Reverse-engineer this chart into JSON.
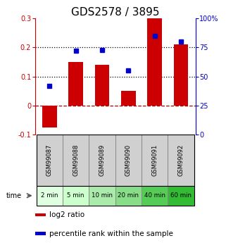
{
  "title": "GDS2578 / 3895",
  "categories": [
    "GSM99087",
    "GSM99088",
    "GSM99089",
    "GSM99090",
    "GSM99091",
    "GSM99092"
  ],
  "time_labels": [
    "2 min",
    "5 min",
    "10 min",
    "20 min",
    "40 min",
    "60 min"
  ],
  "log2_ratio": [
    -0.075,
    0.15,
    0.14,
    0.05,
    0.3,
    0.21
  ],
  "percentile_rank_pct": [
    42,
    72,
    73,
    55,
    85,
    80
  ],
  "bar_color": "#cc0000",
  "dot_color": "#0000cc",
  "left_ylim": [
    -0.1,
    0.3
  ],
  "right_ylim": [
    0,
    100
  ],
  "left_yticks": [
    -0.1,
    0.0,
    0.1,
    0.2,
    0.3
  ],
  "right_yticks": [
    0,
    25,
    50,
    75,
    100
  ],
  "dotted_line_y": [
    0.1,
    0.2
  ],
  "zero_dashed_color": "#aa0000",
  "title_fontsize": 11,
  "tick_fontsize": 7,
  "legend_fontsize": 7.5,
  "time_box_colors": [
    "#e0ffe0",
    "#ccffcc",
    "#aaeaaa",
    "#88dd88",
    "#55cc55",
    "#33bb33"
  ],
  "gsm_box_color": "#d0d0d0",
  "gsm_box_border": "#888888",
  "fig_w": 3.21,
  "fig_h": 3.45,
  "dpi": 100
}
